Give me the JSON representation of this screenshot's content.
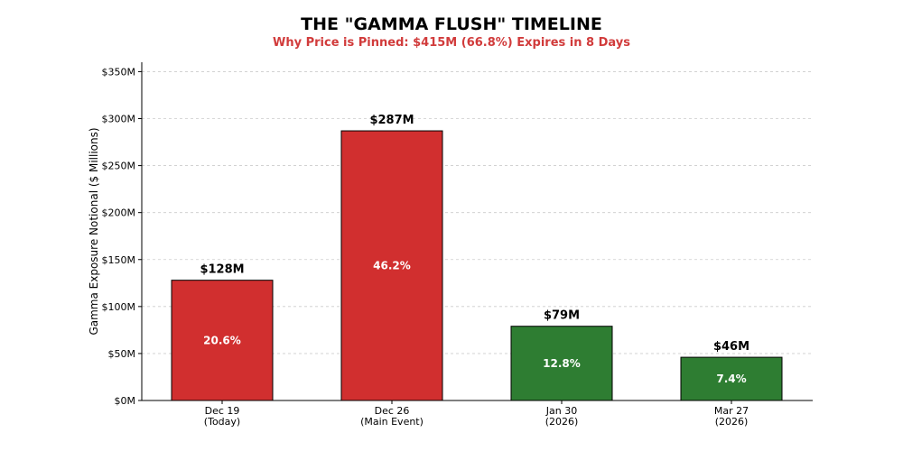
{
  "chart_data": {
    "type": "bar",
    "title": "THE \"GAMMA FLUSH\" TIMELINE",
    "subtitle": "Why Price is Pinned: $415M (66.8%) Expires in 8 Days",
    "ylabel": "Gamma Exposure Notional ($ Millions)",
    "xlabel": "",
    "ylim": [
      0,
      360
    ],
    "grid": true,
    "yticks": [
      {
        "value": 0,
        "label": "$0M"
      },
      {
        "value": 50,
        "label": "$50M"
      },
      {
        "value": 100,
        "label": "$100M"
      },
      {
        "value": 150,
        "label": "$150M"
      },
      {
        "value": 200,
        "label": "$200M"
      },
      {
        "value": 250,
        "label": "$250M"
      },
      {
        "value": 300,
        "label": "$300M"
      },
      {
        "value": 350,
        "label": "$350M"
      }
    ],
    "categories": [
      "Dec 19\n(Today)",
      "Dec 26\n(Main Event)",
      "Jan 30\n(2026)",
      "Mar 27\n(2026)"
    ],
    "category_lines": [
      [
        "Dec 19",
        "(Today)"
      ],
      [
        "Dec 26",
        "(Main Event)"
      ],
      [
        "Jan 30",
        "(2026)"
      ],
      [
        "Mar 27",
        "(2026)"
      ]
    ],
    "values": [
      128,
      287,
      79,
      46
    ],
    "value_labels": [
      "$128M",
      "$287M",
      "$79M",
      "$46M"
    ],
    "pct_labels": [
      "20.6%",
      "46.2%",
      "12.8%",
      "7.4%"
    ],
    "colors": [
      "#d12f2f",
      "#d12f2f",
      "#2e7d32",
      "#2e7d32"
    ]
  }
}
